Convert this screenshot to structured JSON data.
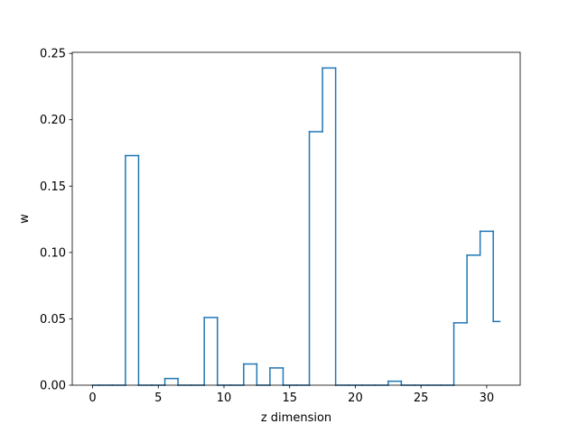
{
  "chart_data": {
    "type": "step",
    "x": [
      0,
      1,
      2,
      3,
      4,
      5,
      6,
      7,
      8,
      9,
      10,
      11,
      12,
      13,
      14,
      15,
      16,
      17,
      18,
      19,
      20,
      21,
      22,
      23,
      24,
      25,
      26,
      27,
      28,
      29,
      30,
      31
    ],
    "values": [
      0,
      0,
      0,
      0.173,
      0,
      0,
      0.005,
      0,
      0,
      0.051,
      0,
      0,
      0.016,
      0,
      0.013,
      0,
      0,
      0.191,
      0.239,
      0,
      0,
      0,
      0,
      0.003,
      0,
      0,
      0,
      0,
      0.047,
      0.098,
      0.116,
      0.048
    ],
    "xlabel": "z dimension",
    "ylabel": "w",
    "xlim": [
      -1.55,
      32.55
    ],
    "ylim": [
      0,
      0.2508
    ],
    "xticks": [
      0,
      5,
      10,
      15,
      20,
      25,
      30
    ],
    "yticks": [
      0.0,
      0.05,
      0.1,
      0.15,
      0.2,
      0.25
    ],
    "xtick_labels": [
      "0",
      "5",
      "10",
      "15",
      "20",
      "25",
      "30"
    ],
    "ytick_labels": [
      "0.00",
      "0.05",
      "0.10",
      "0.15",
      "0.20",
      "0.25"
    ],
    "grid": false,
    "line_color": "#1f77b4"
  }
}
